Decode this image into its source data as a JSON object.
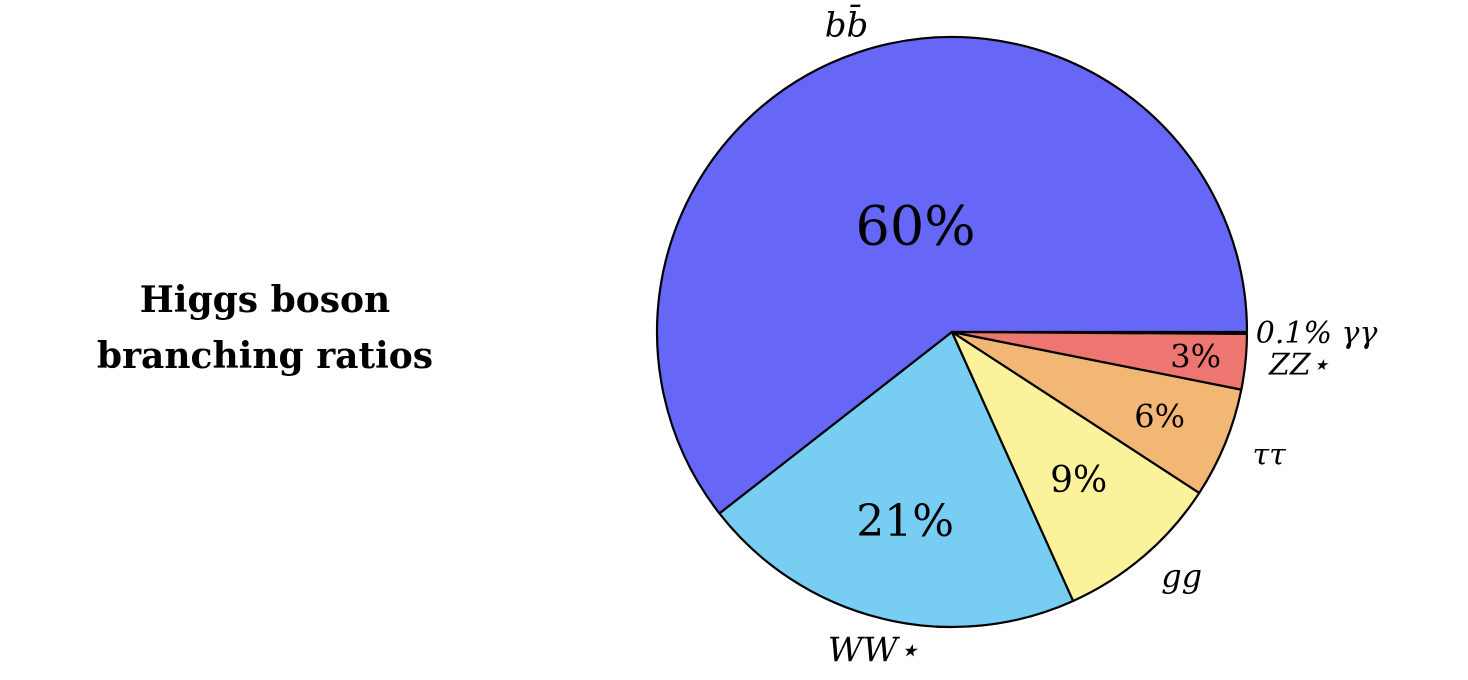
{
  "chart_data": {
    "type": "pie",
    "title_lines": [
      "Higgs boson",
      "branching ratios"
    ],
    "slices": [
      {
        "label": "b̄b",
        "label_display": "bb̄",
        "value": 60,
        "value_label": "60%",
        "color": "#6666F7"
      },
      {
        "label": "WW⋆",
        "label_display": "WW⋆",
        "value": 21,
        "value_label": "21%",
        "color": "#78CEF2"
      },
      {
        "label": "gg",
        "label_display": "gg",
        "value": 9,
        "value_label": "9%",
        "color": "#FBF29B"
      },
      {
        "label": "ττ",
        "label_display": "ττ",
        "value": 6,
        "value_label": "6%",
        "color": "#F3B775"
      },
      {
        "label": "ZZ⋆",
        "label_display": "ZZ⋆",
        "value": 3,
        "value_label": "3%",
        "color": "#EE7670"
      },
      {
        "label": "γγ",
        "label_display": "0.1% γγ",
        "value": 0.1,
        "value_label": "0.1%",
        "color": "#000000"
      }
    ]
  }
}
